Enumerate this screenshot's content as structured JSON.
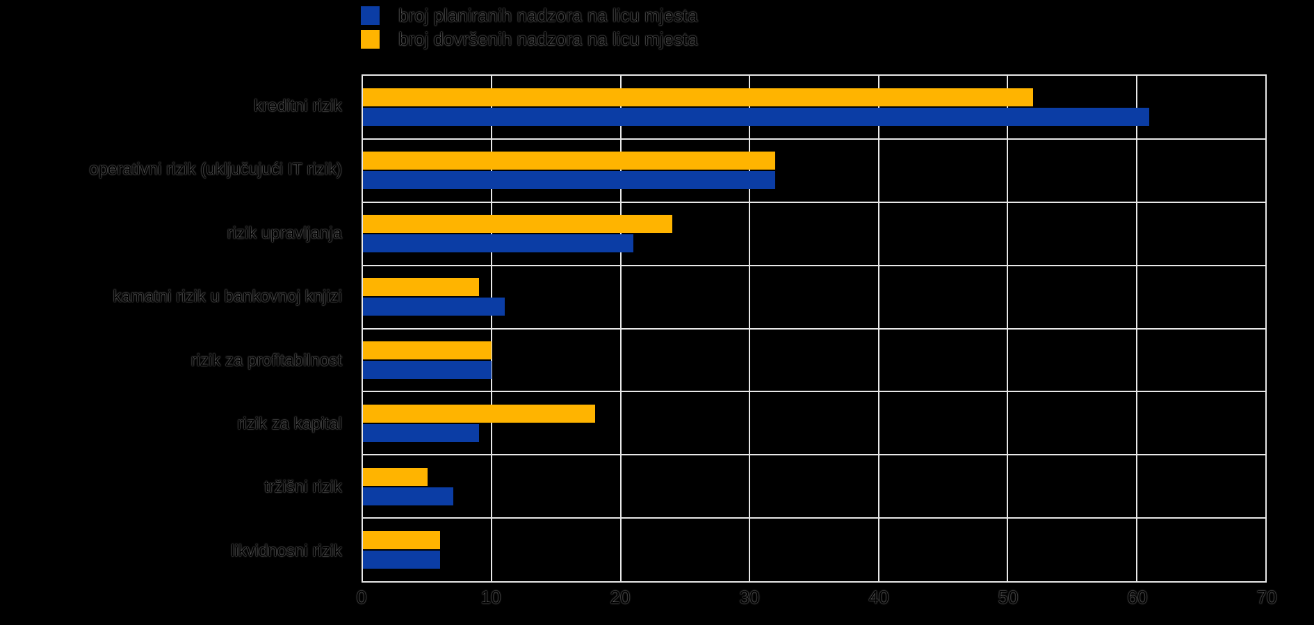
{
  "page": {
    "background": "#000000",
    "text_color": "#000000",
    "gridline_color": "#E8E8E8"
  },
  "legend": {
    "position": "top",
    "items": [
      {
        "key": "planned",
        "label": "broj planiranih nadzora na licu mjesta",
        "color": "#0B3DA5"
      },
      {
        "key": "completed",
        "label": "broj dovršenih nadzora na licu mjesta",
        "color": "#FFB400"
      }
    ]
  },
  "chart_data": {
    "type": "bar",
    "orientation": "horizontal",
    "title": "",
    "xlabel": "",
    "ylabel": "",
    "categories": [
      "kreditni rizik",
      "operativni rizik (uključujući IT rizik)",
      "rizik upravljanja",
      "kamatni rizik u bankovnoj knjizi",
      "rizik za profitabilnost",
      "rizik za kapital",
      "tržišni rizik",
      "likvidnosni rizik"
    ],
    "series": [
      {
        "key": "planned",
        "name": "broj planiranih nadzora na licu mjesta",
        "color": "#0B3DA5",
        "values": [
          61,
          32,
          21,
          11,
          10,
          9,
          7,
          6
        ]
      },
      {
        "key": "completed",
        "name": "broj dovršenih nadzora na licu mjesta",
        "color": "#FFB400",
        "values": [
          52,
          32,
          24,
          9,
          10,
          18,
          5,
          6
        ]
      }
    ],
    "bar_order_top_to_bottom_in_group": [
      "completed",
      "planned"
    ],
    "xlim": [
      0,
      70
    ],
    "xticks": [
      0,
      10,
      20,
      30,
      40,
      50,
      60,
      70
    ],
    "grid": true,
    "legend_position": "top"
  }
}
